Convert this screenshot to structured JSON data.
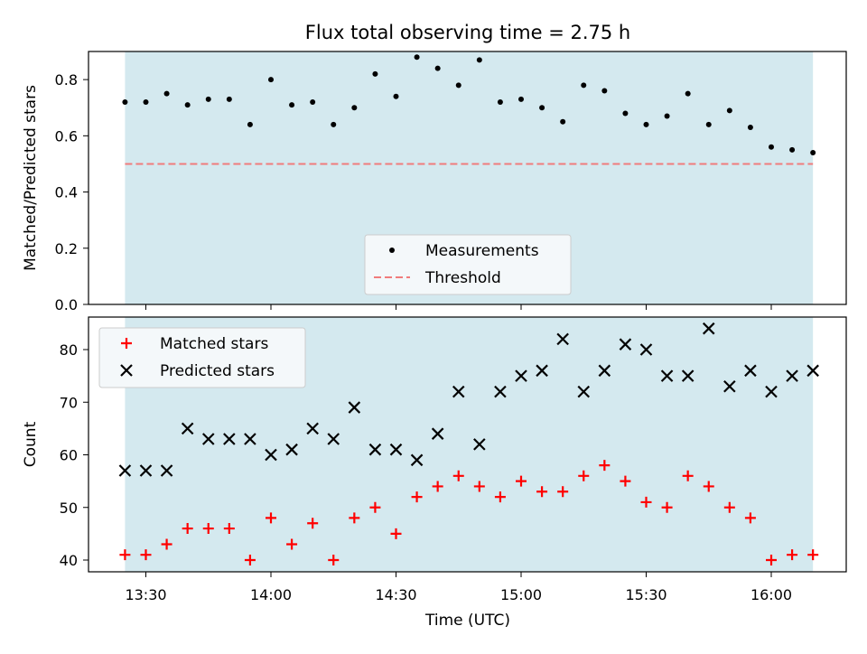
{
  "chart_data": [
    {
      "type": "scatter",
      "title": "Flux total observing time = 2.75 h",
      "ylabel": "Matched/Predicted stars",
      "xlabel": "",
      "ylim": [
        0,
        0.9
      ],
      "yticks": [
        "0.0",
        "0.2",
        "0.4",
        "0.6",
        "0.8"
      ],
      "shaded_region": {
        "start": "13:25",
        "end": "16:10",
        "color": "#d4e9ef"
      },
      "legend_position": "lower-center",
      "series": [
        {
          "name": "Measurements",
          "marker": "dot",
          "color": "#000000",
          "x": [
            "13:25",
            "13:30",
            "13:35",
            "13:40",
            "13:45",
            "13:50",
            "13:55",
            "14:00",
            "14:05",
            "14:10",
            "14:15",
            "14:20",
            "14:25",
            "14:30",
            "14:35",
            "14:40",
            "14:45",
            "14:50",
            "14:55",
            "15:00",
            "15:05",
            "15:10",
            "15:15",
            "15:20",
            "15:25",
            "15:30",
            "15:35",
            "15:40",
            "15:45",
            "15:50",
            "15:55",
            "16:00",
            "16:05",
            "16:10"
          ],
          "values": [
            0.72,
            0.72,
            0.75,
            0.71,
            0.73,
            0.73,
            0.64,
            0.8,
            0.71,
            0.72,
            0.64,
            0.7,
            0.82,
            0.74,
            0.88,
            0.84,
            0.78,
            0.87,
            0.72,
            0.73,
            0.7,
            0.65,
            0.78,
            0.76,
            0.68,
            0.64,
            0.67,
            0.75,
            0.64,
            0.69,
            0.63,
            0.56,
            0.55,
            0.54
          ]
        },
        {
          "name": "Threshold",
          "line": "dashed",
          "color": "#f07c7c",
          "x": [
            "13:25",
            "16:10"
          ],
          "values": [
            0.5,
            0.5
          ]
        }
      ]
    },
    {
      "type": "scatter",
      "xlabel": "Time (UTC)",
      "ylabel": "Count",
      "ylim": [
        38,
        87
      ],
      "yticks": [
        "40",
        "50",
        "60",
        "70",
        "80"
      ],
      "xticks": [
        "13:30",
        "14:00",
        "14:30",
        "15:00",
        "15:30",
        "16:00"
      ],
      "shaded_region": {
        "start": "13:25",
        "end": "16:10",
        "color": "#d4e9ef"
      },
      "legend_position": "upper-left",
      "series": [
        {
          "name": "Matched stars",
          "marker": "plus",
          "color": "#ff0000",
          "x": [
            "13:25",
            "13:30",
            "13:35",
            "13:40",
            "13:45",
            "13:50",
            "13:55",
            "14:00",
            "14:05",
            "14:10",
            "14:15",
            "14:20",
            "14:25",
            "14:30",
            "14:35",
            "14:40",
            "14:45",
            "14:50",
            "14:55",
            "15:00",
            "15:05",
            "15:10",
            "15:15",
            "15:20",
            "15:25",
            "15:30",
            "15:35",
            "15:40",
            "15:45",
            "15:50",
            "15:55",
            "16:00",
            "16:05",
            "16:10"
          ],
          "values": [
            41,
            41,
            43,
            46,
            46,
            46,
            40,
            48,
            43,
            47,
            40,
            48,
            50,
            45,
            52,
            54,
            56,
            54,
            52,
            55,
            53,
            53,
            56,
            58,
            55,
            51,
            50,
            56,
            54,
            50,
            48,
            40,
            41,
            41
          ]
        },
        {
          "name": "Predicted stars",
          "marker": "x",
          "color": "#000000",
          "x": [
            "13:25",
            "13:30",
            "13:35",
            "13:40",
            "13:45",
            "13:50",
            "13:55",
            "14:00",
            "14:05",
            "14:10",
            "14:15",
            "14:20",
            "14:25",
            "14:30",
            "14:35",
            "14:40",
            "14:45",
            "14:50",
            "14:55",
            "15:00",
            "15:05",
            "15:10",
            "15:15",
            "15:20",
            "15:25",
            "15:30",
            "15:35",
            "15:40",
            "15:45",
            "15:50",
            "15:55",
            "16:00",
            "16:05",
            "16:10"
          ],
          "values": [
            57,
            57,
            57,
            65,
            63,
            63,
            63,
            60,
            61,
            65,
            63,
            69,
            61,
            61,
            59,
            64,
            72,
            62,
            72,
            75,
            76,
            82,
            72,
            76,
            81,
            80,
            75,
            75,
            84,
            73,
            76,
            72,
            75,
            76
          ]
        }
      ]
    }
  ]
}
